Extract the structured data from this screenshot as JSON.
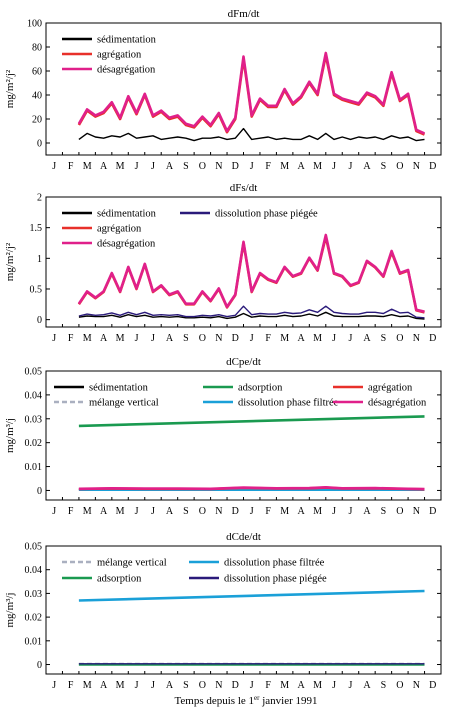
{
  "figure": {
    "xlabel": "Temps depuis le 1er janvier 1991",
    "xlabel_parts": {
      "pre": "Temps depuis le 1",
      "sup": "er",
      "post": " janvier 1991"
    }
  },
  "chart_data": [
    {
      "type": "line",
      "title": "dFm/dt",
      "ylabel": "mg/m²/j²",
      "ylim": [
        -10,
        100
      ],
      "yticks": [
        0,
        20,
        40,
        60,
        80,
        100
      ],
      "ytick_labels": [
        "0",
        "20",
        "40",
        "60",
        "80",
        "100"
      ],
      "x_tick_labels": [
        "J",
        "F",
        "M",
        "A",
        "M",
        "J",
        "J",
        "A",
        "S",
        "O",
        "N",
        "D",
        "J",
        "F",
        "M",
        "A",
        "M",
        "J",
        "J",
        "A",
        "S",
        "O",
        "N",
        "D"
      ],
      "legend_placement": "top-left",
      "x_unit": "month index since 1991-01-01",
      "series": [
        {
          "name": "sédimentation",
          "color": "#000000",
          "x": [
            2.0,
            2.5,
            3.0,
            3.5,
            4.0,
            4.5,
            5.0,
            5.5,
            6.0,
            6.5,
            7.0,
            7.5,
            8.0,
            8.5,
            9.0,
            9.5,
            10.0,
            10.5,
            11.0,
            11.5,
            12.0,
            12.5,
            13.0,
            13.5,
            14.0,
            14.5,
            15.0,
            15.5,
            16.0,
            16.5,
            17.0,
            17.5,
            18.0,
            18.5,
            19.0,
            19.5,
            20.0,
            20.5,
            21.0,
            21.5,
            22.0,
            22.5,
            23.0
          ],
          "values": [
            3,
            8,
            5,
            4,
            6,
            5,
            8,
            4,
            5,
            6,
            3,
            4,
            5,
            4,
            2,
            4,
            4,
            5,
            3,
            4,
            12,
            3,
            4,
            5,
            3,
            4,
            3,
            3,
            6,
            3,
            8,
            3,
            5,
            3,
            5,
            4,
            5,
            3,
            6,
            4,
            5,
            2,
            3
          ]
        },
        {
          "name": "agrégation",
          "color": "#e8302a",
          "x": [
            2.0,
            2.5,
            3.0,
            3.5,
            4.0,
            4.5,
            5.0,
            5.5,
            6.0,
            6.5,
            7.0,
            7.5,
            8.0,
            8.5,
            9.0,
            9.5,
            10.0,
            10.5,
            11.0,
            11.5,
            12.0,
            12.5,
            13.0,
            13.5,
            14.0,
            14.5,
            15.0,
            15.5,
            16.0,
            16.5,
            17.0,
            17.5,
            18.0,
            18.5,
            19.0,
            19.5,
            20.0,
            20.5,
            21.0,
            21.5,
            22.0,
            22.5,
            23.0
          ],
          "values": [
            15,
            27,
            22,
            25,
            33,
            20,
            38,
            24,
            40,
            22,
            26,
            20,
            22,
            15,
            13,
            21,
            14,
            24,
            9,
            20,
            70,
            22,
            36,
            30,
            30,
            44,
            32,
            38,
            50,
            40,
            73,
            40,
            36,
            34,
            32,
            41,
            38,
            31,
            58,
            35,
            40,
            10,
            7
          ]
        },
        {
          "name": "désagrégation",
          "color": "#e0208a",
          "x": [
            2.0,
            2.5,
            3.0,
            3.5,
            4.0,
            4.5,
            5.0,
            5.5,
            6.0,
            6.5,
            7.0,
            7.5,
            8.0,
            8.5,
            9.0,
            9.5,
            10.0,
            10.5,
            11.0,
            11.5,
            12.0,
            12.5,
            13.0,
            13.5,
            14.0,
            14.5,
            15.0,
            15.5,
            16.0,
            16.5,
            17.0,
            17.5,
            18.0,
            18.5,
            19.0,
            19.5,
            20.0,
            20.5,
            21.0,
            21.5,
            22.0,
            22.5,
            23.0
          ],
          "values": [
            16,
            28,
            23,
            26,
            34,
            21,
            39,
            25,
            41,
            23,
            27,
            21,
            23,
            16,
            14,
            22,
            15,
            25,
            10,
            21,
            72,
            23,
            37,
            31,
            31,
            45,
            33,
            39,
            51,
            41,
            75,
            41,
            37,
            35,
            33,
            42,
            39,
            32,
            59,
            36,
            41,
            11,
            8
          ]
        }
      ]
    },
    {
      "type": "line",
      "title": "dFs/dt",
      "ylabel": "mg/m²/j²",
      "ylim": [
        -0.12,
        2
      ],
      "yticks": [
        0,
        0.5,
        1,
        1.5,
        2
      ],
      "ytick_labels": [
        "0",
        "0.5",
        "1",
        "1.5",
        "2"
      ],
      "x_tick_labels": [
        "J",
        "F",
        "M",
        "A",
        "M",
        "J",
        "J",
        "A",
        "S",
        "O",
        "N",
        "D",
        "J",
        "F",
        "M",
        "A",
        "M",
        "J",
        "J",
        "A",
        "S",
        "O",
        "N",
        "D"
      ],
      "legend_placement": "top-left",
      "x_unit": "month index since 1991-01-01",
      "series": [
        {
          "name": "sédimentation",
          "color": "#000000",
          "x": [
            2.0,
            2.5,
            3.0,
            3.5,
            4.0,
            4.5,
            5.0,
            5.5,
            6.0,
            6.5,
            7.0,
            7.5,
            8.0,
            8.5,
            9.0,
            9.5,
            10.0,
            10.5,
            11.0,
            11.5,
            12.0,
            12.5,
            13.0,
            13.5,
            14.0,
            14.5,
            15.0,
            15.5,
            16.0,
            16.5,
            17.0,
            17.5,
            18.0,
            18.5,
            19.0,
            19.5,
            20.0,
            20.5,
            21.0,
            21.5,
            22.0,
            22.5,
            23.0
          ],
          "values": [
            0.04,
            0.06,
            0.05,
            0.05,
            0.07,
            0.04,
            0.08,
            0.05,
            0.07,
            0.04,
            0.05,
            0.04,
            0.05,
            0.03,
            0.03,
            0.04,
            0.03,
            0.05,
            0.02,
            0.04,
            0.1,
            0.04,
            0.06,
            0.05,
            0.05,
            0.07,
            0.05,
            0.06,
            0.09,
            0.06,
            0.12,
            0.06,
            0.05,
            0.05,
            0.05,
            0.06,
            0.06,
            0.05,
            0.08,
            0.05,
            0.06,
            0.02,
            0.01
          ]
        },
        {
          "name": "agrégation",
          "color": "#e8302a",
          "x": [
            2.0,
            2.5,
            3.0,
            3.5,
            4.0,
            4.5,
            5.0,
            5.5,
            6.0,
            6.5,
            7.0,
            7.5,
            8.0,
            8.5,
            9.0,
            9.5,
            10.0,
            10.5,
            11.0,
            11.5,
            12.0,
            12.5,
            13.0,
            13.5,
            14.0,
            14.5,
            15.0,
            15.5,
            16.0,
            16.5,
            17.0,
            17.5,
            18.0,
            18.5,
            19.0,
            19.5,
            20.0,
            20.5,
            21.0,
            21.5,
            22.0,
            22.5,
            23.0
          ],
          "values": [
            0.25,
            0.45,
            0.35,
            0.45,
            0.75,
            0.45,
            0.85,
            0.5,
            0.9,
            0.45,
            0.55,
            0.4,
            0.45,
            0.25,
            0.25,
            0.45,
            0.3,
            0.5,
            0.2,
            0.4,
            1.25,
            0.45,
            0.75,
            0.65,
            0.6,
            0.85,
            0.7,
            0.75,
            1.0,
            0.8,
            1.35,
            0.75,
            0.7,
            0.55,
            0.6,
            0.95,
            0.85,
            0.7,
            1.1,
            0.75,
            0.8,
            0.15,
            0.12
          ]
        },
        {
          "name": "désagrégation",
          "color": "#e0208a",
          "x": [
            2.0,
            2.5,
            3.0,
            3.5,
            4.0,
            4.5,
            5.0,
            5.5,
            6.0,
            6.5,
            7.0,
            7.5,
            8.0,
            8.5,
            9.0,
            9.5,
            10.0,
            10.5,
            11.0,
            11.5,
            12.0,
            12.5,
            13.0,
            13.5,
            14.0,
            14.5,
            15.0,
            15.5,
            16.0,
            16.5,
            17.0,
            17.5,
            18.0,
            18.5,
            19.0,
            19.5,
            20.0,
            20.5,
            21.0,
            21.5,
            22.0,
            22.5,
            23.0
          ],
          "values": [
            0.26,
            0.46,
            0.36,
            0.46,
            0.76,
            0.46,
            0.86,
            0.51,
            0.91,
            0.46,
            0.56,
            0.41,
            0.46,
            0.26,
            0.26,
            0.46,
            0.31,
            0.51,
            0.21,
            0.41,
            1.27,
            0.46,
            0.76,
            0.66,
            0.61,
            0.86,
            0.71,
            0.76,
            1.01,
            0.81,
            1.38,
            0.76,
            0.71,
            0.56,
            0.61,
            0.96,
            0.86,
            0.71,
            1.12,
            0.76,
            0.81,
            0.16,
            0.13
          ]
        },
        {
          "name": "dissolution phase piégée",
          "color": "#2a1a7a",
          "x": [
            2.0,
            2.5,
            3.0,
            3.5,
            4.0,
            4.5,
            5.0,
            5.5,
            6.0,
            6.5,
            7.0,
            7.5,
            8.0,
            8.5,
            9.0,
            9.5,
            10.0,
            10.5,
            11.0,
            11.5,
            12.0,
            12.5,
            13.0,
            13.5,
            14.0,
            14.5,
            15.0,
            15.5,
            16.0,
            16.5,
            17.0,
            17.5,
            18.0,
            18.5,
            19.0,
            19.5,
            20.0,
            20.5,
            21.0,
            21.5,
            22.0,
            22.5,
            23.0
          ],
          "values": [
            0.06,
            0.09,
            0.07,
            0.08,
            0.11,
            0.07,
            0.12,
            0.08,
            0.12,
            0.07,
            0.08,
            0.07,
            0.08,
            0.05,
            0.05,
            0.07,
            0.06,
            0.08,
            0.05,
            0.07,
            0.22,
            0.08,
            0.1,
            0.09,
            0.09,
            0.12,
            0.1,
            0.11,
            0.16,
            0.12,
            0.22,
            0.12,
            0.1,
            0.09,
            0.09,
            0.12,
            0.12,
            0.1,
            0.17,
            0.11,
            0.12,
            0.04,
            0.03
          ]
        }
      ]
    },
    {
      "type": "line",
      "title": "dCpe/dt",
      "ylabel": "mg/m³/j",
      "ylim": [
        -0.004,
        0.05
      ],
      "yticks": [
        0,
        0.01,
        0.02,
        0.03,
        0.04,
        0.05
      ],
      "ytick_labels": [
        "0",
        "0.01",
        "0.02",
        "0.03",
        "0.04",
        "0.05"
      ],
      "x_tick_labels": [
        "J",
        "F",
        "M",
        "A",
        "M",
        "J",
        "J",
        "A",
        "S",
        "O",
        "N",
        "D",
        "J",
        "F",
        "M",
        "A",
        "M",
        "J",
        "J",
        "A",
        "S",
        "O",
        "N",
        "D"
      ],
      "legend_placement": "top",
      "x_unit": "month index since 1991-01-01",
      "series": [
        {
          "name": "sédimentation",
          "color": "#000000",
          "x": [
            2.0,
            23.0
          ],
          "values": [
            0.0005,
            0.0005
          ]
        },
        {
          "name": "mélange vertical",
          "color": "#aab0c0",
          "dashed": true,
          "x": [
            2.0,
            23.0
          ],
          "values": [
            0.0005,
            0.0005
          ]
        },
        {
          "name": "adsorption",
          "color": "#1a9a50",
          "x": [
            2.0,
            23.0
          ],
          "values": [
            0.027,
            0.031
          ]
        },
        {
          "name": "dissolution phase filtrée",
          "color": "#1aa0d8",
          "x": [
            2.0,
            23.0
          ],
          "values": [
            0.0003,
            0.0003
          ]
        },
        {
          "name": "agrégation",
          "color": "#e8302a",
          "x": [
            2.0,
            4.0,
            6.0,
            8.0,
            10.0,
            12.0,
            14.0,
            16.0,
            17.0,
            18.0,
            20.0,
            22.0,
            23.0
          ],
          "values": [
            0.0006,
            0.0008,
            0.0007,
            0.0007,
            0.0006,
            0.0011,
            0.0008,
            0.0009,
            0.0012,
            0.0008,
            0.0009,
            0.0006,
            0.0005
          ]
        },
        {
          "name": "désagrégation",
          "color": "#e0208a",
          "x": [
            2.0,
            4.0,
            6.0,
            8.0,
            10.0,
            12.0,
            14.0,
            16.0,
            17.0,
            18.0,
            20.0,
            22.0,
            23.0
          ],
          "values": [
            0.0007,
            0.0009,
            0.0008,
            0.0008,
            0.0007,
            0.0012,
            0.0009,
            0.001,
            0.0013,
            0.0009,
            0.001,
            0.0007,
            0.0006
          ]
        }
      ]
    },
    {
      "type": "line",
      "title": "dCde/dt",
      "ylabel": "mg/m³/j",
      "ylim": [
        -0.004,
        0.05
      ],
      "yticks": [
        0,
        0.01,
        0.02,
        0.03,
        0.04,
        0.05
      ],
      "ytick_labels": [
        "0",
        "0.01",
        "0.02",
        "0.03",
        "0.04",
        "0.05"
      ],
      "x_tick_labels": [
        "J",
        "F",
        "M",
        "A",
        "M",
        "J",
        "J",
        "A",
        "S",
        "O",
        "N",
        "D",
        "J",
        "F",
        "M",
        "A",
        "M",
        "J",
        "J",
        "A",
        "S",
        "O",
        "N",
        "D"
      ],
      "legend_placement": "top",
      "x_unit": "month index since 1991-01-01",
      "series": [
        {
          "name": "mélange vertical",
          "color": "#aab0c0",
          "dashed": true,
          "x": [
            2.0,
            23.0
          ],
          "values": [
            0.0002,
            0.0002
          ]
        },
        {
          "name": "dissolution phase filtrée",
          "color": "#1aa0d8",
          "x": [
            2.0,
            23.0
          ],
          "values": [
            0.027,
            0.031
          ]
        },
        {
          "name": "adsorption",
          "color": "#1a9a50",
          "x": [
            2.0,
            23.0
          ],
          "values": [
            0.0,
            0.0
          ]
        },
        {
          "name": "dissolution phase piégée",
          "color": "#2a1a7a",
          "x": [
            2.0,
            23.0
          ],
          "values": [
            0.0003,
            0.0003
          ]
        }
      ]
    }
  ]
}
